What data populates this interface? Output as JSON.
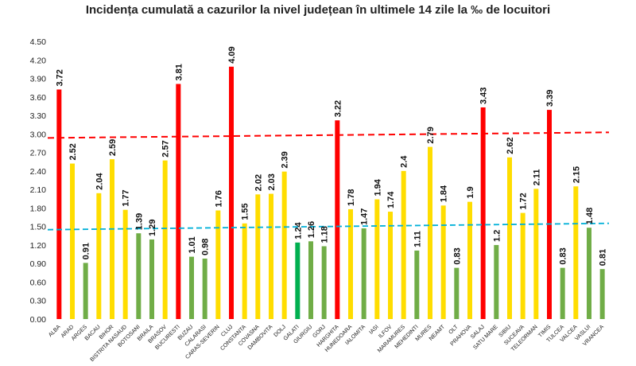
{
  "chart_data": {
    "type": "bar",
    "title": "Incidența cumulată a cazurilor la nivel județean în ultimele 14 zile la ‰ de locuitori",
    "xlabel": "",
    "ylabel": "",
    "ylim": [
      0,
      4.5
    ],
    "yticks": [
      "0.00",
      "0.30",
      "0.60",
      "0.90",
      "1.20",
      "1.50",
      "1.80",
      "2.10",
      "2.40",
      "2.70",
      "3.00",
      "3.30",
      "3.60",
      "3.90",
      "4.20",
      "4.50"
    ],
    "grid": false,
    "categories": [
      "ALBA",
      "ARAD",
      "ARGES",
      "BACAU",
      "BIHOR",
      "BISTRITA NASAUD",
      "BOTOSANI",
      "BRAILA",
      "BRASOV",
      "BUCURESTI",
      "BUZAU",
      "CALARASI",
      "CARAS-SEVERIN",
      "CLUJ",
      "CONSTANTA",
      "COVASNA",
      "DAMBOVITA",
      "DOLJ",
      "GALATI",
      "GIURGIU",
      "GORJ",
      "HARGHITA",
      "HUNEDOARA",
      "IALOMITA",
      "IASI",
      "ILFOV",
      "MARAMURES",
      "MEHEDINTI",
      "MURES",
      "NEAMT",
      "OLT",
      "PRAHOVA",
      "SALAJ",
      "SATU MARE",
      "SIBIU",
      "SUCEAVA",
      "TELEORMAN",
      "TIMIS",
      "TULCEA",
      "VALCEA",
      "VASLUI",
      "VRANCEA"
    ],
    "values": [
      3.72,
      2.52,
      0.91,
      2.04,
      2.59,
      1.77,
      1.39,
      1.29,
      2.57,
      3.81,
      1.01,
      0.98,
      1.76,
      4.09,
      1.55,
      2.02,
      2.03,
      2.39,
      1.24,
      1.26,
      1.18,
      3.22,
      1.78,
      1.47,
      1.94,
      1.74,
      2.4,
      1.11,
      2.79,
      1.84,
      0.83,
      1.9,
      3.43,
      1.2,
      2.62,
      1.72,
      2.11,
      3.39,
      0.83,
      2.15,
      1.48,
      0.81
    ],
    "value_labels": [
      "3.72",
      "2.52",
      "0.91",
      "2.04",
      "2.59",
      "1.77",
      "1.39",
      "1.29",
      "2.57",
      "3.81",
      "1.01",
      "0.98",
      "1.76",
      "4.09",
      "1.55",
      "2.02",
      "2.03",
      "2.39",
      "1.24",
      "1.26",
      "1.18",
      "3.22",
      "1.78",
      "1.47",
      "1.94",
      "1.74",
      "2.4",
      "1.11",
      "2.79",
      "1.84",
      "0.83",
      "1.9",
      "3.43",
      "1.2",
      "2.62",
      "1.72",
      "2.11",
      "3.39",
      "0.83",
      "2.15",
      "1.48",
      "0.81"
    ],
    "colors": {
      "red": "#ff0000",
      "yellow": "#ffdd00",
      "green": "#70ad47",
      "bright_green": "#00b050",
      "red_line": "#ff0000",
      "cyan_line": "#00b0d8"
    },
    "reference_lines": [
      {
        "y": 3.0,
        "color": "red",
        "style": "dashed"
      },
      {
        "y": 1.5,
        "color": "cyan",
        "style": "dashed"
      }
    ]
  }
}
